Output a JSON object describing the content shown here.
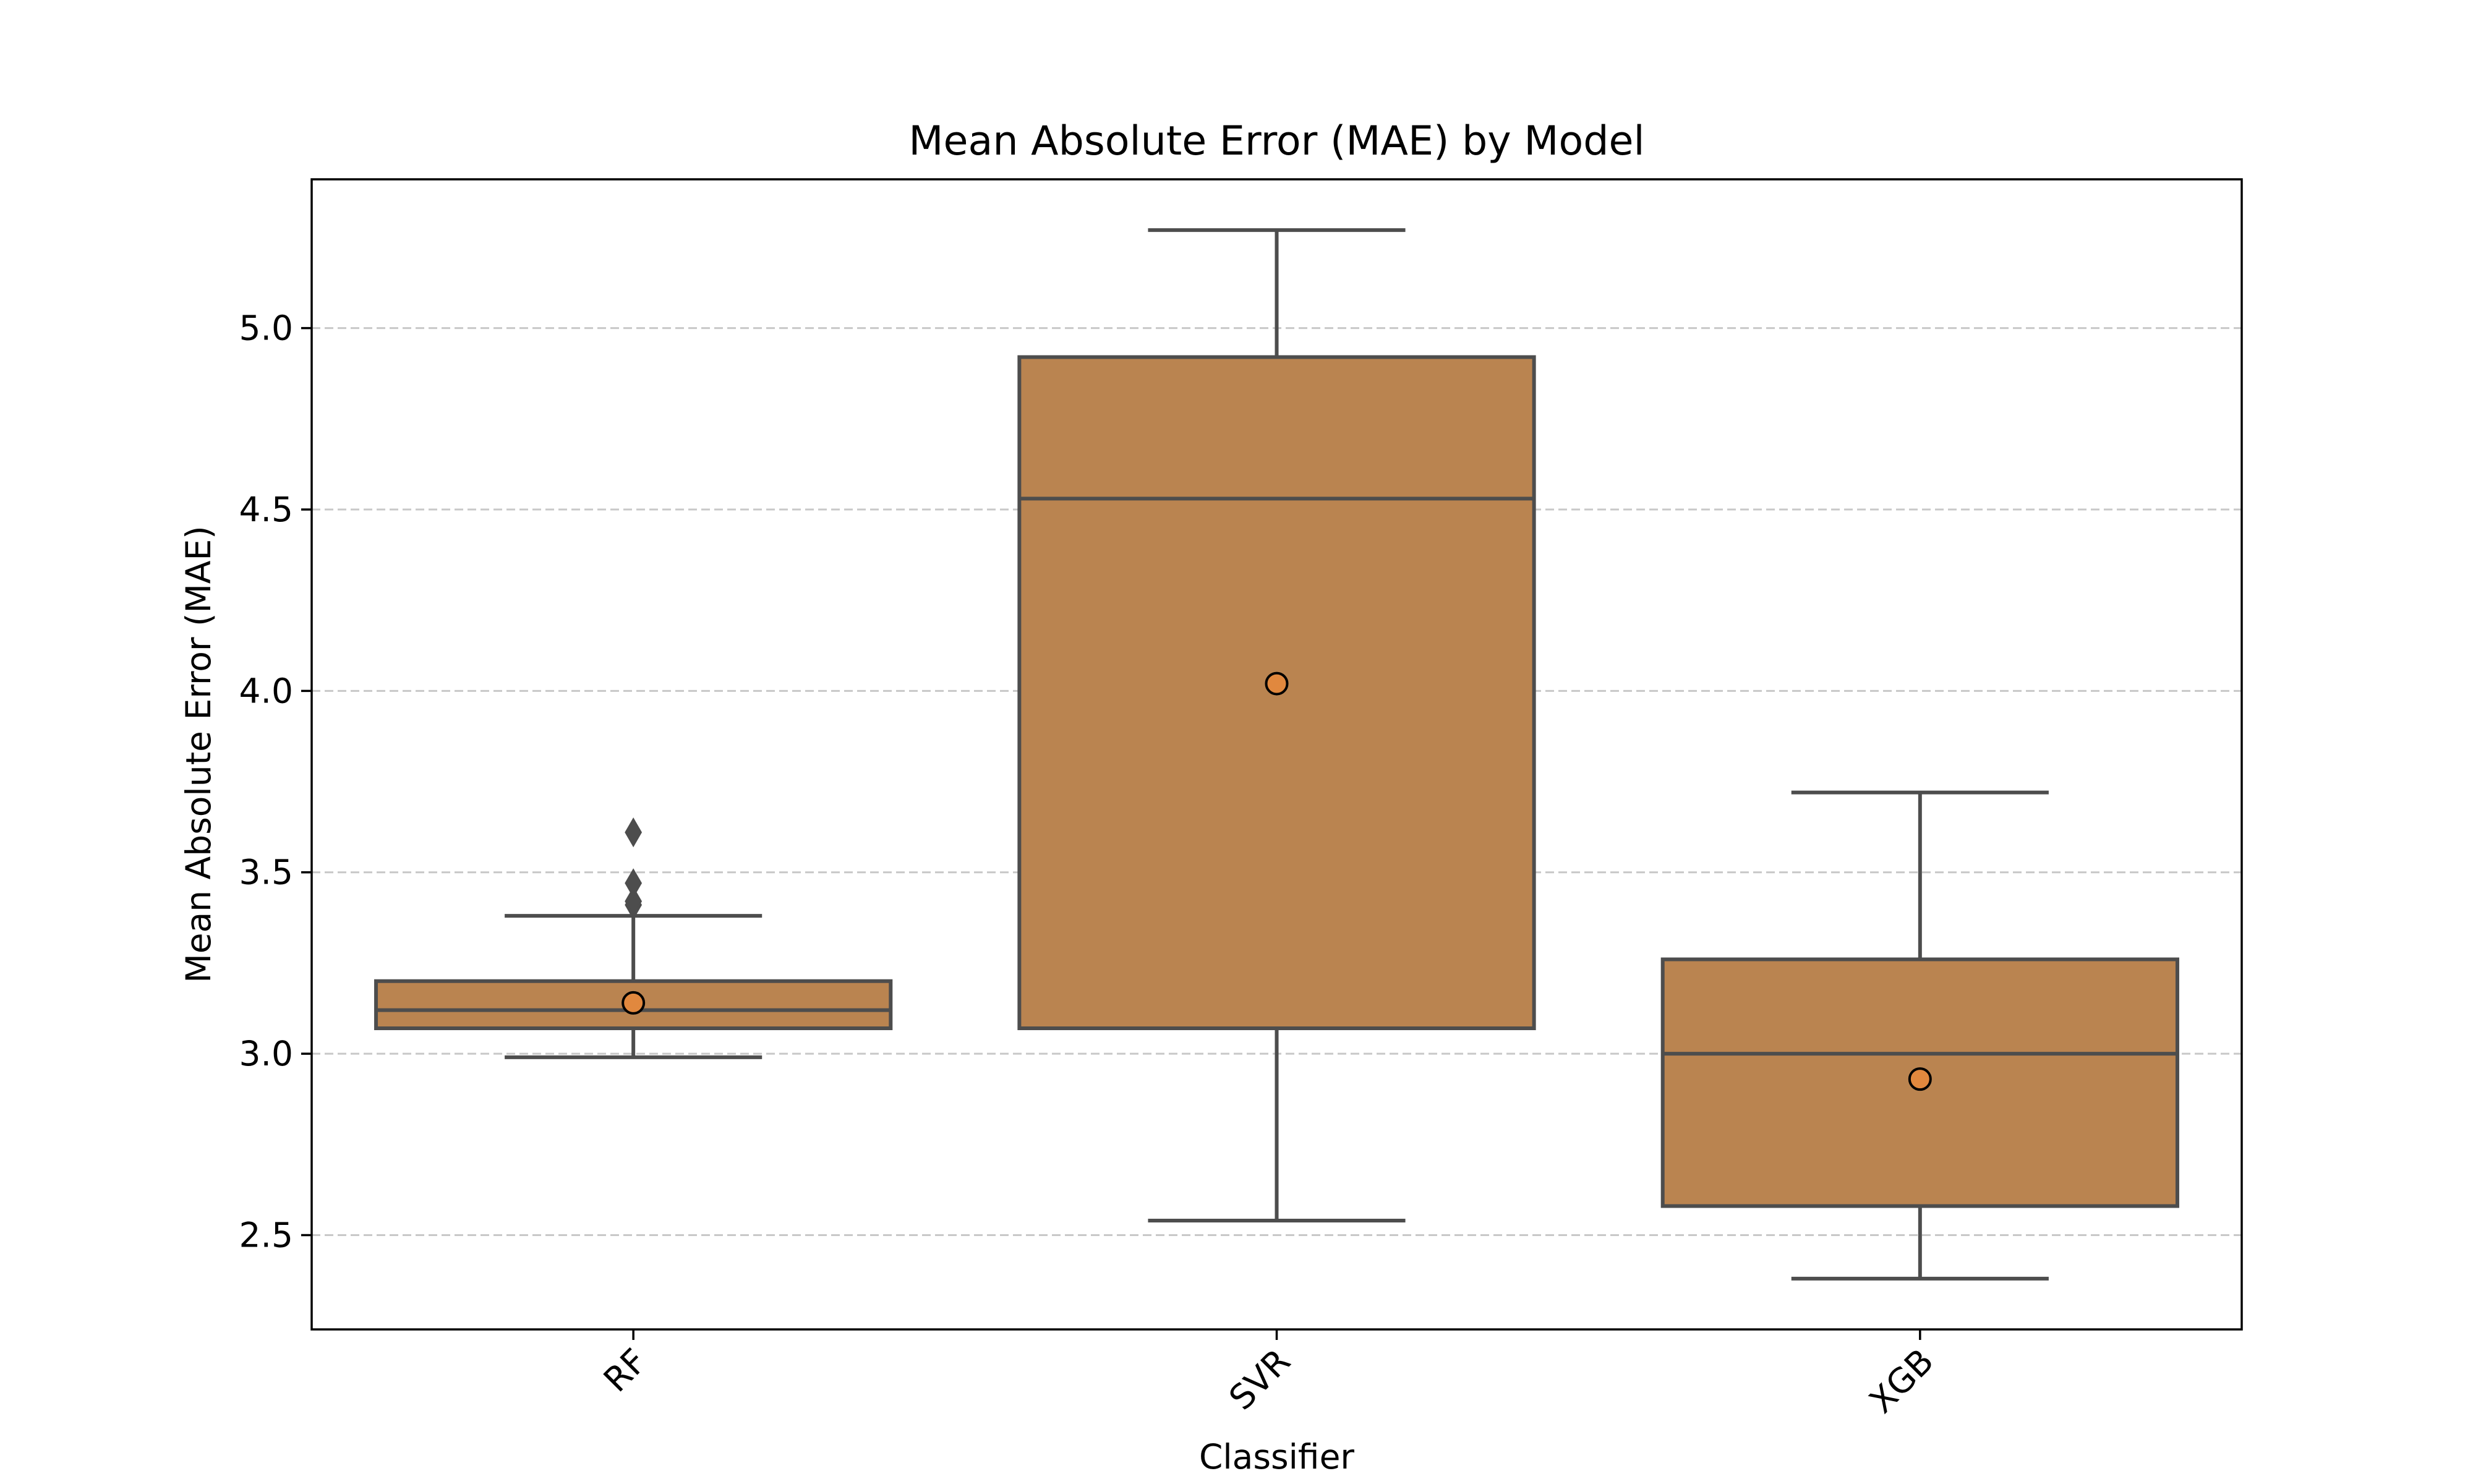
{
  "chart_data": {
    "type": "box",
    "title": "Mean Absolute Error (MAE) by Model",
    "xlabel": "Classifier",
    "ylabel": "Mean Absolute Error (MAE)",
    "ylim": [
      2.24,
      5.41
    ],
    "yticks": [
      2.5,
      3.0,
      3.5,
      4.0,
      4.5,
      5.0
    ],
    "ytick_labels": [
      "2.5",
      "3.0",
      "3.5",
      "4.0",
      "4.5",
      "5.0"
    ],
    "grid": "horizontal dashed",
    "categories": [
      "RF",
      "SVR",
      "XGB"
    ],
    "boxes": [
      {
        "category": "RF",
        "whisker_low": 2.99,
        "q1": 3.07,
        "median": 3.12,
        "q3": 3.2,
        "whisker_high": 3.38,
        "mean": 3.14,
        "outliers": [
          3.41,
          3.42,
          3.47,
          3.61
        ]
      },
      {
        "category": "SVR",
        "whisker_low": 2.54,
        "q1": 3.07,
        "median": 4.53,
        "q3": 4.92,
        "whisker_high": 5.27,
        "mean": 4.02,
        "outliers": []
      },
      {
        "category": "XGB",
        "whisker_low": 2.38,
        "q1": 2.58,
        "median": 3.0,
        "q3": 3.26,
        "whisker_high": 3.72,
        "mean": 2.93,
        "outliers": []
      }
    ],
    "colors": {
      "box_fill": "#BA8450",
      "box_edge": "#4D4D4D",
      "mean_marker_fill": "#E1883E",
      "grid": "#C8C8C8"
    }
  }
}
